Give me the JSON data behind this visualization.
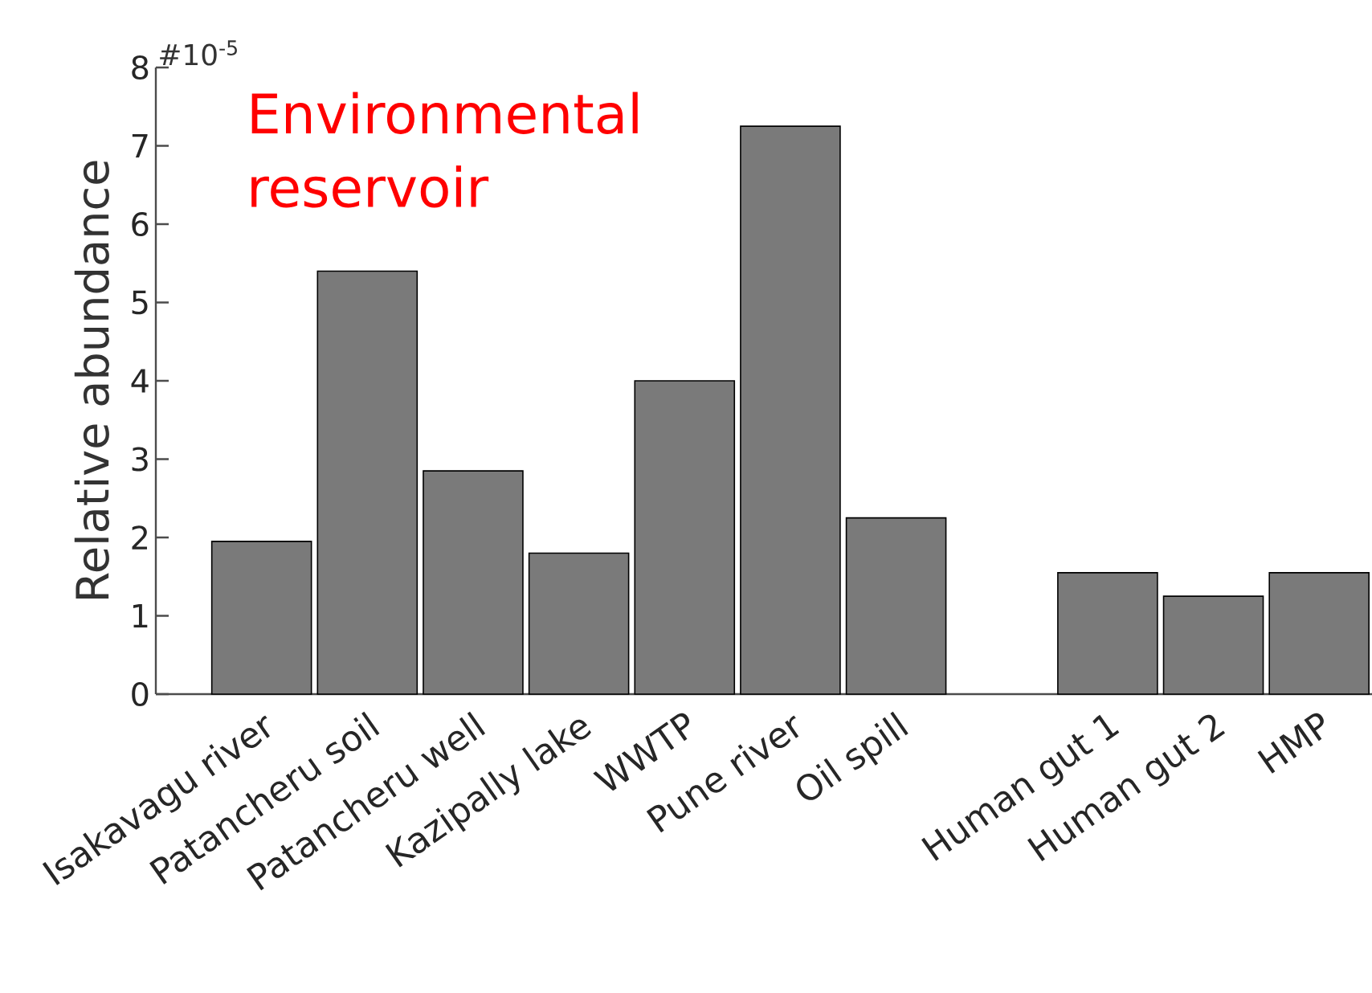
{
  "chart_data": {
    "type": "bar",
    "ylabel": "Relative abundance",
    "categories": [
      "Isakavagu river",
      "Patancheru soil",
      "Patancheru well",
      "Kazipally lake",
      "WWTP",
      "Pune river",
      "Oil spill",
      null,
      "Human gut 1",
      "Human gut 2",
      "HMP"
    ],
    "values": [
      1.95,
      5.4,
      2.85,
      1.8,
      4.0,
      7.25,
      2.25,
      null,
      1.55,
      1.25,
      1.55
    ],
    "color": "#7a7a7a",
    "ylim": [
      0,
      8
    ],
    "yticks": [
      0,
      1,
      2,
      3,
      4,
      5,
      6,
      7,
      8
    ],
    "annotations": [
      "#10$^{-5}$",
      "Environmental reservoir"
    ]
  }
}
